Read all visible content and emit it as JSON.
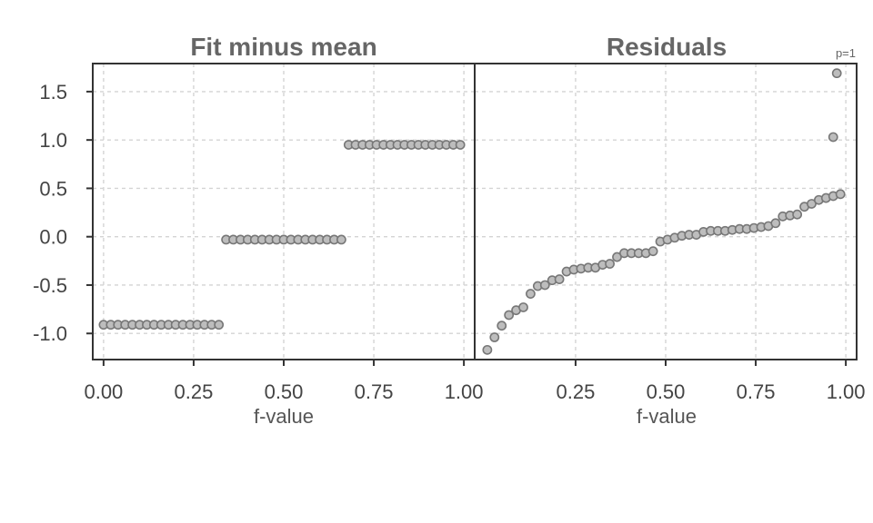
{
  "chart_data": [
    {
      "type": "scatter",
      "title": "Fit minus mean",
      "xlabel": "f-value",
      "ylabel": "",
      "xlim": [
        -0.03,
        1.03
      ],
      "ylim": [
        -1.27,
        1.79
      ],
      "grid": true,
      "x_ticks": [
        "0.00",
        "0.25",
        "0.50",
        "0.75",
        "1.00"
      ],
      "y_ticks": [
        "1.5",
        "1.0",
        "0.5",
        "0.0",
        "-0.5",
        "-1.0"
      ],
      "levels": [
        {
          "x_from": 0.0,
          "x_to": 0.32,
          "y": -0.91
        },
        {
          "x_from": 0.34,
          "x_to": 0.66,
          "y": -0.03
        },
        {
          "x_from": 0.68,
          "x_to": 0.99,
          "y": 0.95
        }
      ],
      "points_per_level": 17
    },
    {
      "type": "scatter",
      "title": "Residuals",
      "xlabel": "f-value",
      "ylabel": "",
      "xlim": [
        -0.03,
        1.03
      ],
      "ylim": [
        -1.27,
        1.79
      ],
      "grid": true,
      "annotation": "p=1",
      "x_ticks": [
        "0.25",
        "0.50",
        "0.75",
        "1.00"
      ],
      "y_ticks": [
        "1.5",
        "1.0",
        "0.5",
        "0.0",
        "-0.5",
        "-1.0"
      ],
      "x": [
        0.005,
        0.025,
        0.045,
        0.065,
        0.085,
        0.105,
        0.125,
        0.145,
        0.165,
        0.185,
        0.205,
        0.225,
        0.245,
        0.265,
        0.285,
        0.305,
        0.325,
        0.345,
        0.365,
        0.385,
        0.405,
        0.425,
        0.445,
        0.465,
        0.485,
        0.505,
        0.525,
        0.545,
        0.565,
        0.585,
        0.605,
        0.625,
        0.645,
        0.665,
        0.685,
        0.705,
        0.725,
        0.745,
        0.765,
        0.785,
        0.805,
        0.825,
        0.845,
        0.865,
        0.885,
        0.905,
        0.925,
        0.945,
        0.965,
        0.985
      ],
      "y": [
        -1.17,
        -1.04,
        -0.92,
        -0.81,
        -0.76,
        -0.73,
        -0.59,
        -0.51,
        -0.5,
        -0.45,
        -0.44,
        -0.36,
        -0.34,
        -0.33,
        -0.32,
        -0.32,
        -0.29,
        -0.28,
        -0.21,
        -0.17,
        -0.17,
        -0.17,
        -0.17,
        -0.15,
        -0.05,
        -0.03,
        -0.01,
        0.01,
        0.02,
        0.02,
        0.05,
        0.06,
        0.06,
        0.06,
        0.07,
        0.08,
        0.08,
        0.09,
        0.1,
        0.11,
        0.14,
        0.21,
        0.22,
        0.23,
        0.31,
        0.34,
        0.38,
        0.4,
        0.42,
        0.44
      ]
    }
  ]
}
